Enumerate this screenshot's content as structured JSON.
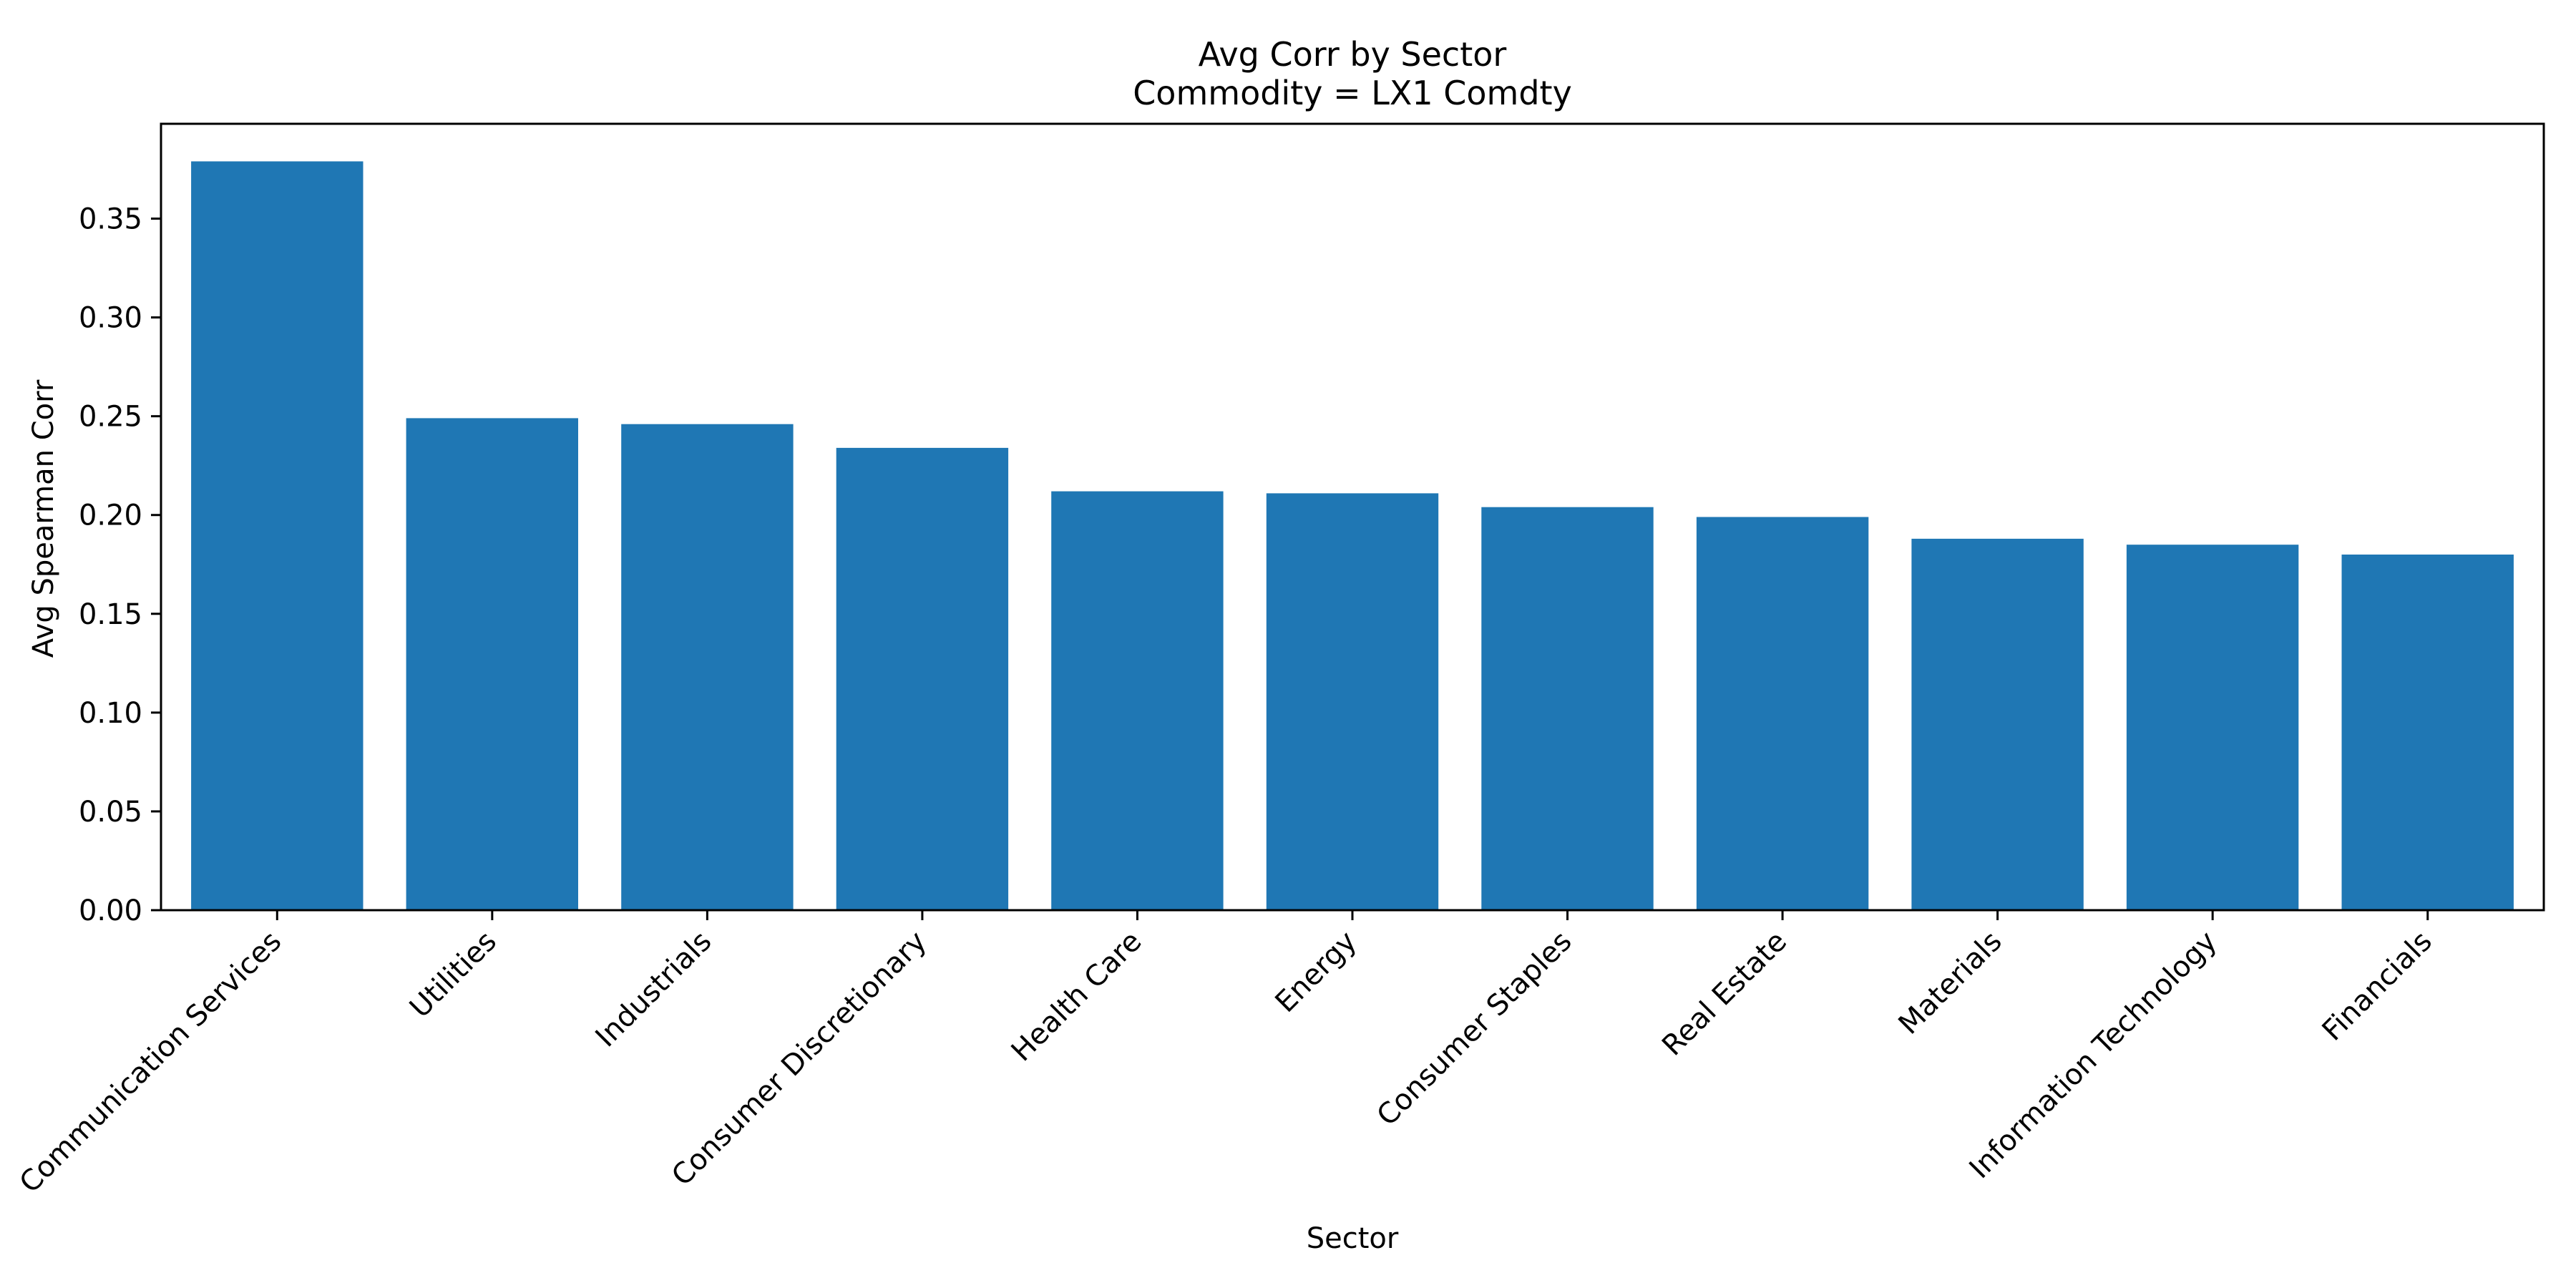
{
  "chart_data": {
    "type": "bar",
    "title": "Avg Corr by Sector",
    "subtitle": "Commodity = LX1 Comdty",
    "xlabel": "Sector",
    "ylabel": "Avg Spearman Corr",
    "categories": [
      "Communication Services",
      "Utilities",
      "Industrials",
      "Consumer Discretionary",
      "Health Care",
      "Energy",
      "Consumer Staples",
      "Real Estate",
      "Materials",
      "Information Technology",
      "Financials"
    ],
    "values": [
      0.379,
      0.249,
      0.246,
      0.234,
      0.212,
      0.211,
      0.204,
      0.199,
      0.188,
      0.185,
      0.18
    ],
    "ylim": [
      0,
      0.398
    ],
    "yticks": [
      "0.00",
      "0.05",
      "0.10",
      "0.15",
      "0.20",
      "0.25",
      "0.30",
      "0.35"
    ],
    "ytick_values": [
      0,
      0.05,
      0.1,
      0.15,
      0.2,
      0.25,
      0.3,
      0.35
    ],
    "grid": false,
    "legend": "none",
    "bar_color": "#1f77b4"
  }
}
